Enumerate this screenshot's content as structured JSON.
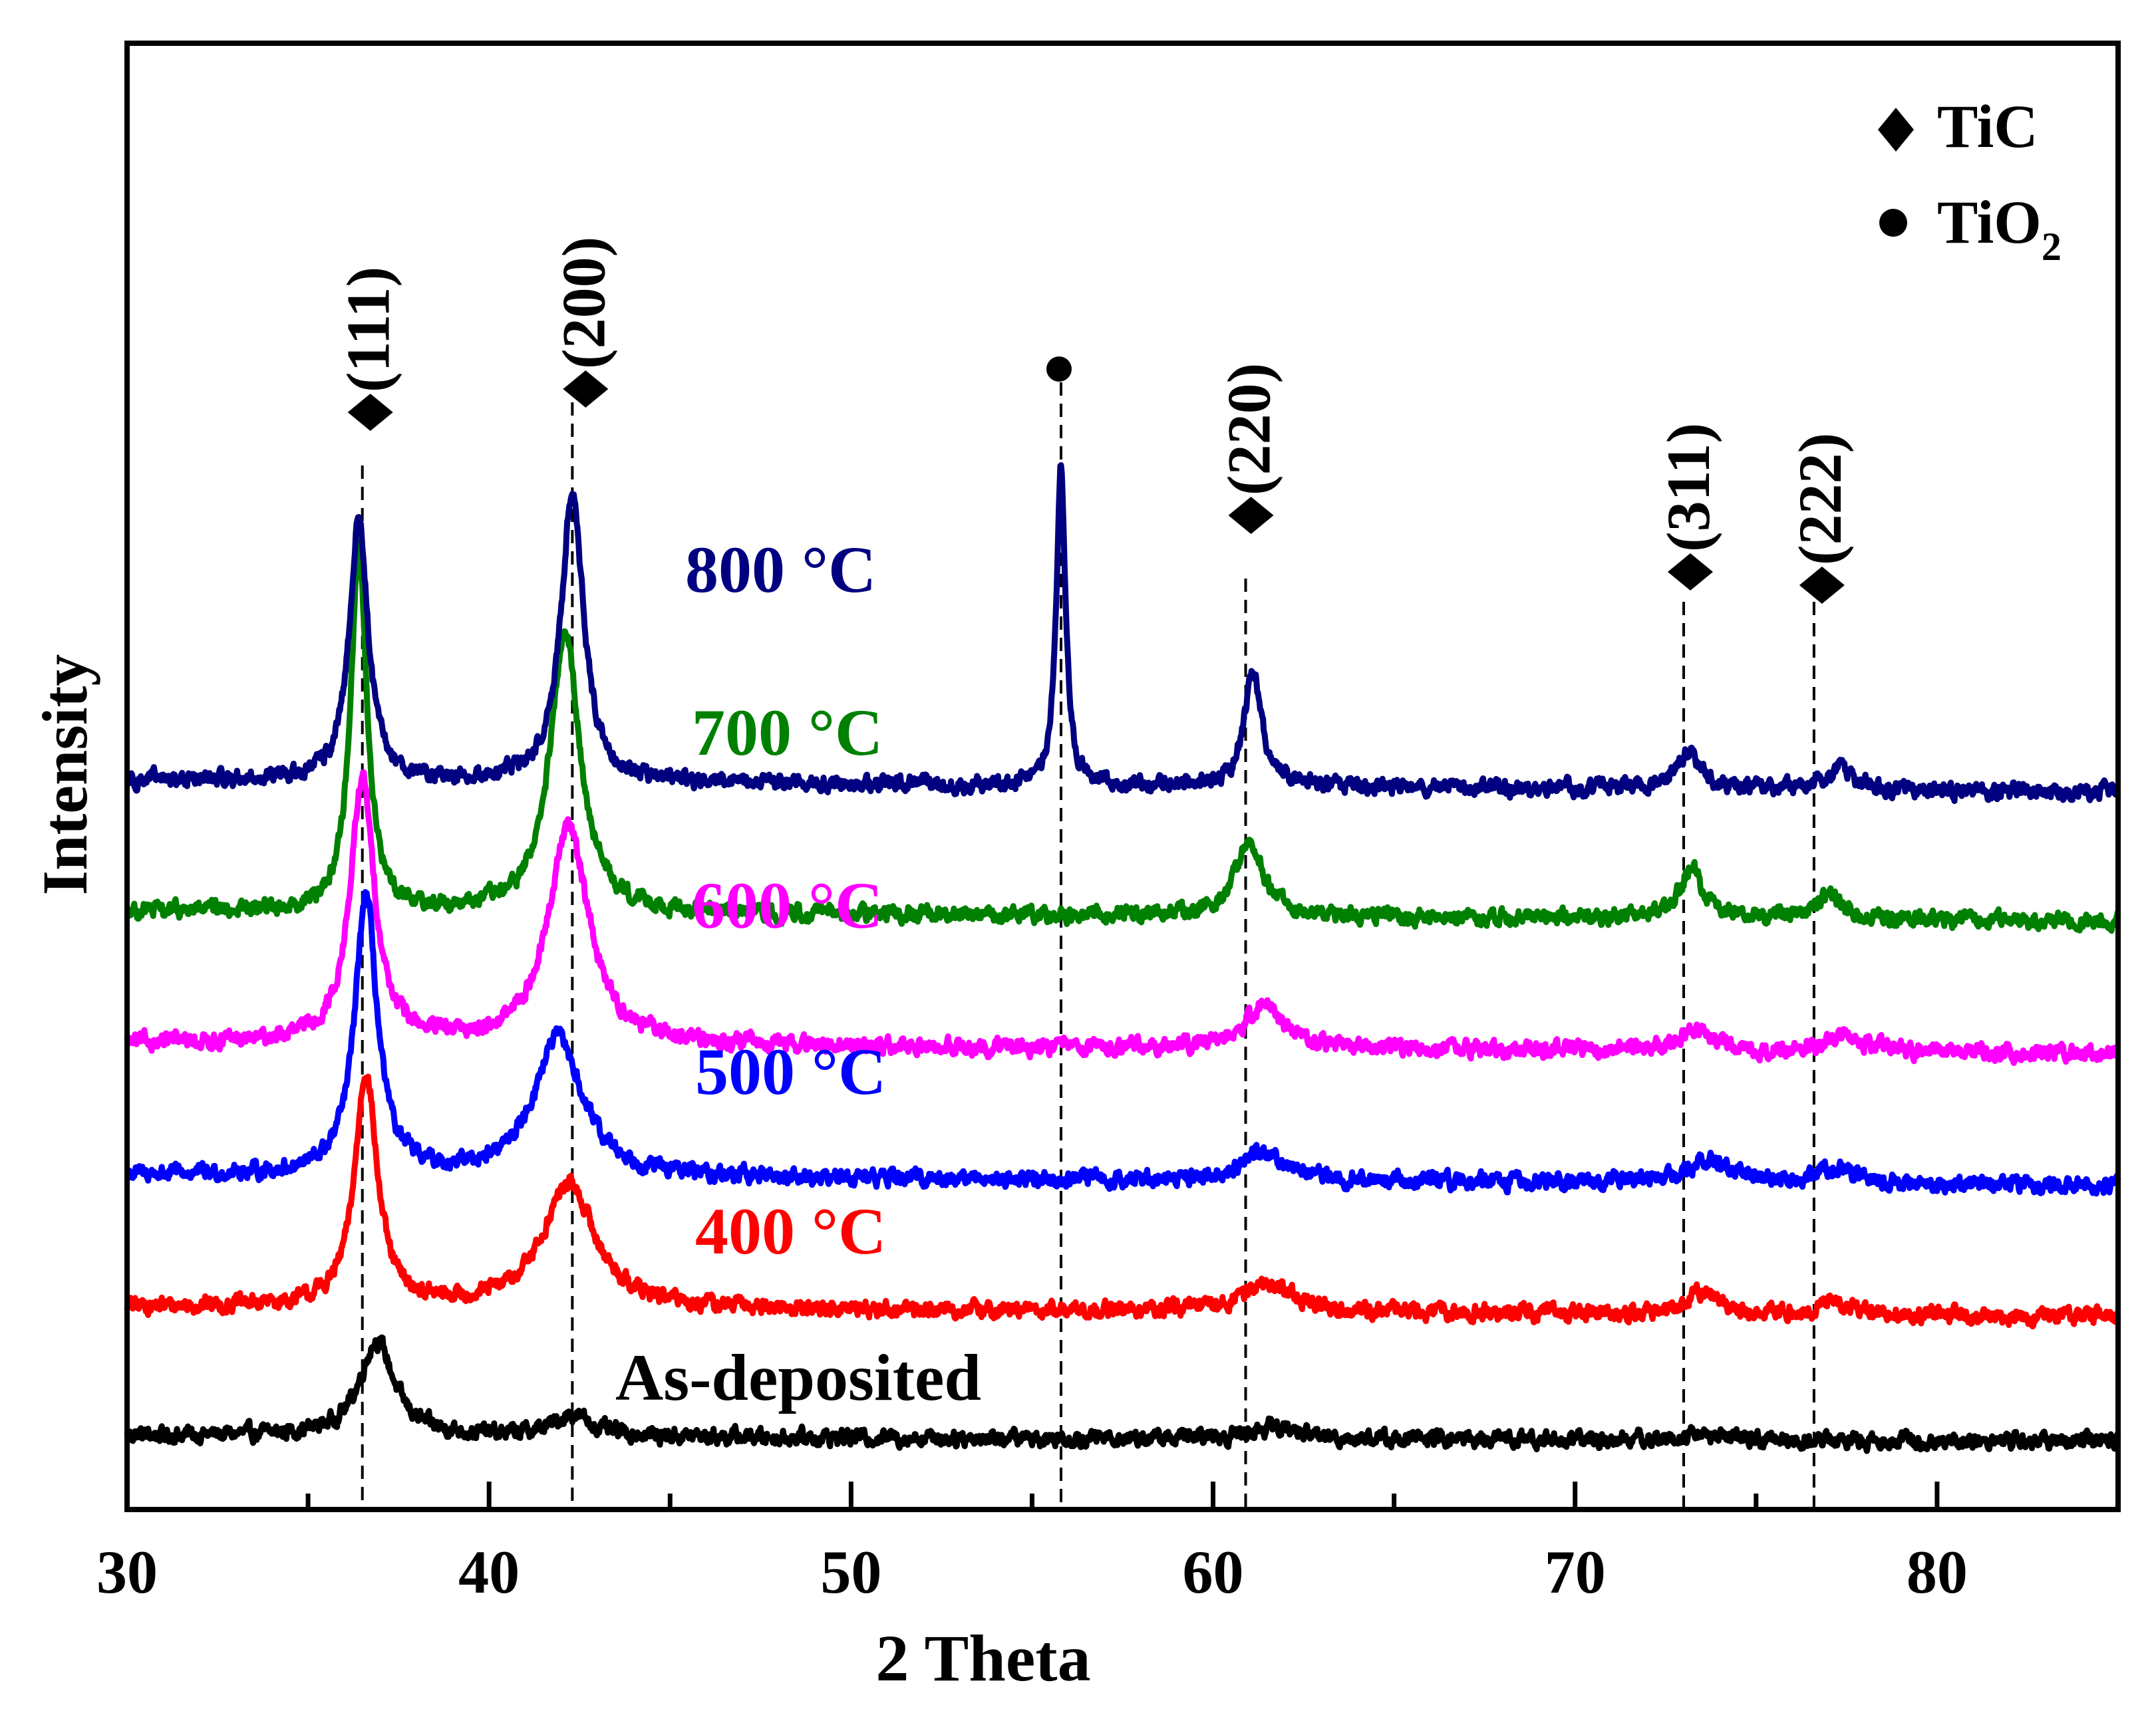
{
  "chart_data": {
    "type": "line",
    "xlabel": "2 Theta",
    "ylabel": "Intensity",
    "xlim": [
      30,
      85
    ],
    "x_ticks": [
      30,
      40,
      50,
      60,
      70,
      80
    ],
    "x_ticks_minor": [
      35,
      45,
      55,
      65,
      75
    ],
    "y_ticks": [],
    "grid": false,
    "legend": {
      "position": "top-right",
      "entries": [
        {
          "marker": "diamond",
          "label": "TiC"
        },
        {
          "marker": "circle",
          "label": "TiO",
          "subscript": "2"
        }
      ]
    },
    "reference_lines": [
      36.5,
      42.3,
      55.8,
      60.9,
      73.0,
      76.6
    ],
    "peak_labels": [
      {
        "x": 36.5,
        "marker": "diamond",
        "label": "(111)"
      },
      {
        "x": 42.3,
        "marker": "diamond",
        "label": "(200)"
      },
      {
        "x": 55.8,
        "marker": "circle",
        "label": ""
      },
      {
        "x": 60.9,
        "marker": "diamond",
        "label": "(220)"
      },
      {
        "x": 73.0,
        "marker": "diamond",
        "label": "(311)"
      },
      {
        "x": 76.6,
        "marker": "diamond",
        "label": "(222)"
      }
    ],
    "series": [
      {
        "name": "As-deposited",
        "color": "#000000",
        "baseline": [
          [
            30,
            1.2
          ],
          [
            85,
            0.8
          ]
        ],
        "peaks": [
          [
            36.9,
            6.5,
            0.85
          ],
          [
            42.3,
            1.5,
            0.9
          ],
          [
            61.7,
            0.8,
            1.2
          ],
          [
            73.6,
            0.4,
            1.0
          ]
        ]
      },
      {
        "name": "400 °C",
        "color": "#ff0000",
        "baseline": [
          [
            30,
            10.0
          ],
          [
            85,
            9.3
          ]
        ],
        "peaks": [
          [
            36.6,
            16.0,
            0.55
          ],
          [
            42.2,
            8.5,
            1.3
          ],
          [
            61.5,
            2.0,
            1.3
          ],
          [
            73.5,
            1.5,
            0.8
          ],
          [
            77.2,
            0.8,
            1.0
          ]
        ]
      },
      {
        "name": "500 °C",
        "color": "#0000ff",
        "baseline": [
          [
            30,
            19.0
          ],
          [
            85,
            18.3
          ]
        ],
        "peaks": [
          [
            36.6,
            19.0,
            0.55
          ],
          [
            41.9,
            9.5,
            1.2
          ],
          [
            61.4,
            2.0,
            1.1
          ],
          [
            73.7,
            1.5,
            1.0
          ],
          [
            77.2,
            1.0,
            1.0
          ]
        ]
      },
      {
        "name": "600 °C",
        "color": "#ff00ff",
        "baseline": [
          [
            30,
            28.0
          ],
          [
            85,
            27.3
          ]
        ],
        "peaks": [
          [
            36.5,
            18.0,
            0.6
          ],
          [
            42.2,
            15.0,
            1.0
          ],
          [
            61.4,
            3.0,
            1.0
          ],
          [
            73.3,
            1.5,
            0.8
          ],
          [
            77.4,
            1.0,
            1.0
          ]
        ]
      },
      {
        "name": "700 °C",
        "color": "#008000",
        "baseline": [
          [
            30,
            37.0
          ],
          [
            85,
            36.4
          ]
        ],
        "peaks": [
          [
            36.4,
            25.0,
            0.4
          ],
          [
            42.1,
            19.0,
            0.75
          ],
          [
            61.0,
            5.0,
            0.7
          ],
          [
            73.2,
            3.5,
            0.55
          ],
          [
            77.0,
            1.5,
            0.7
          ]
        ]
      },
      {
        "name": "800 °C",
        "color": "#000080",
        "baseline": [
          [
            30,
            46.0
          ],
          [
            85,
            45.2
          ]
        ],
        "peaks": [
          [
            36.4,
            18.0,
            0.45
          ],
          [
            42.3,
            20.0,
            0.55
          ],
          [
            55.8,
            22.0,
            0.22
          ],
          [
            61.1,
            7.5,
            0.45
          ],
          [
            73.1,
            2.5,
            0.6
          ],
          [
            77.3,
            1.5,
            0.7
          ]
        ]
      }
    ]
  }
}
